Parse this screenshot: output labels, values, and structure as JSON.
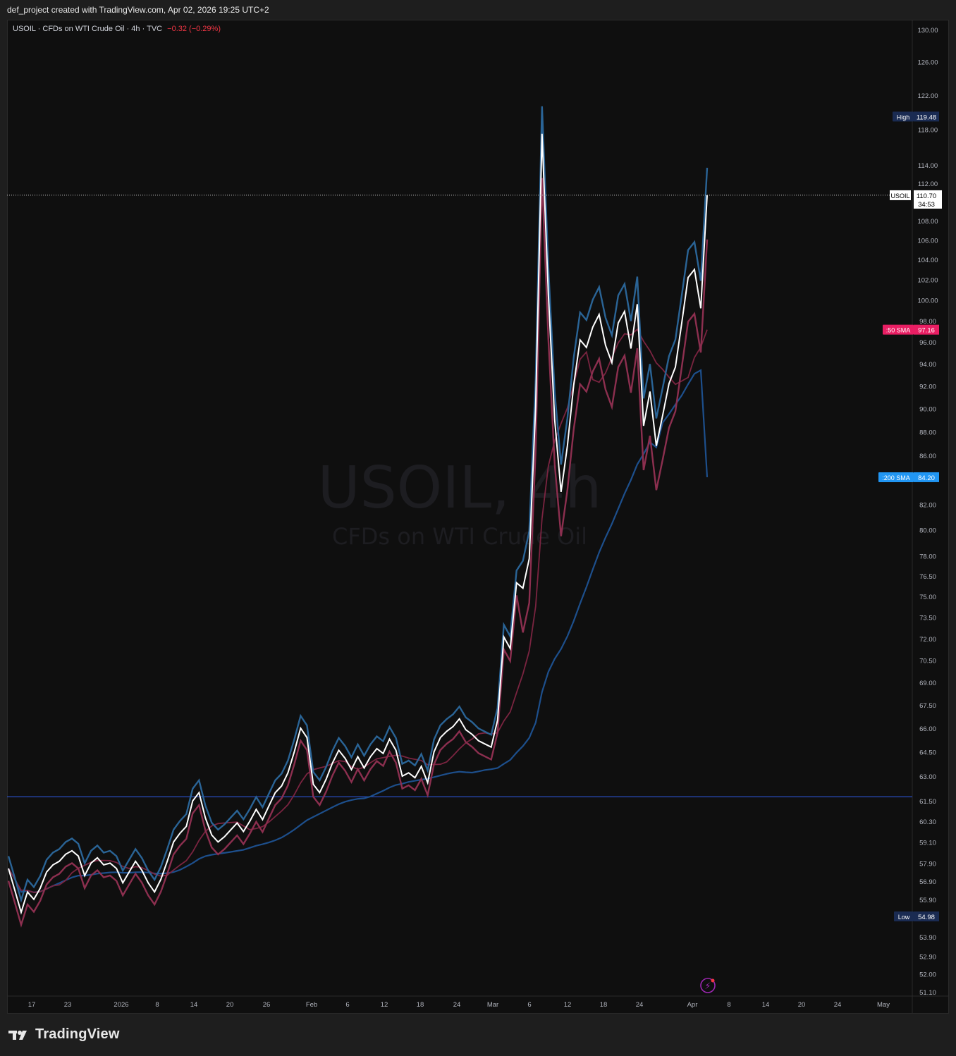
{
  "header": {
    "caption": "def_project created with TradingView.com, Apr 02, 2026 19:25 UTC+2"
  },
  "legend": {
    "symbol_line": "USOIL · CFDs on WTI Crude Oil · 4h · TVC",
    "change": "−0.32 (−0.29%)"
  },
  "watermark": {
    "title": "USOIL, 4h",
    "subtitle": "CFDs on WTI Crude Oil"
  },
  "footer": {
    "logo_text": "TradingView"
  },
  "colors": {
    "background": "#0f0f0f",
    "price_line": "#ffffff",
    "high_band": "#2a6496",
    "low_band": "#8c2f4f",
    "sma50": "#7a2440",
    "sma200": "#1d4f8c",
    "hline": "#2a4cc0",
    "sma50_badge": "#e91e63",
    "sma200_badge": "#2196f3",
    "high_low_badge": "#1a2b52"
  },
  "chart_data": {
    "type": "line",
    "symbol": "USOIL",
    "timeframe": "4h",
    "y_axis": {
      "ticks": [
        "130.00",
        "126.00",
        "122.00",
        "118.00",
        "114.00",
        "112.00",
        "108.00",
        "106.00",
        "104.00",
        "102.00",
        "100.00",
        "98.00",
        "96.00",
        "94.00",
        "92.00",
        "90.00",
        "88.00",
        "86.00",
        "82.00",
        "80.00",
        "78.00",
        "76.50",
        "75.00",
        "73.50",
        "72.00",
        "70.50",
        "69.00",
        "67.50",
        "66.00",
        "64.50",
        "63.00",
        "61.50",
        "60.30",
        "59.10",
        "57.90",
        "56.90",
        "55.90",
        "53.90",
        "52.90",
        "52.00",
        "51.10"
      ],
      "scale": "log",
      "ylim": [
        51.1,
        130
      ]
    },
    "x_axis": {
      "ticks": [
        "17",
        "23",
        "2026",
        "8",
        "14",
        "20",
        "26",
        "Feb",
        "6",
        "12",
        "18",
        "24",
        "Mar",
        "6",
        "12",
        "18",
        "24",
        "Apr",
        "8",
        "14",
        "20",
        "24",
        "May"
      ]
    },
    "series": [
      {
        "name": "Close",
        "points": [
          [
            "Dec 14",
            57.6
          ],
          [
            "Dec 15",
            56.4
          ],
          [
            "Dec 16",
            55.2
          ],
          [
            "Dec 17",
            56.3
          ],
          [
            "Dec 18",
            55.9
          ],
          [
            "Dec 19",
            56.5
          ],
          [
            "Dec 20",
            57.4
          ],
          [
            "Dec 21",
            57.8
          ],
          [
            "Dec 22",
            58.0
          ],
          [
            "Dec 23",
            58.4
          ],
          [
            "Dec 24",
            58.6
          ],
          [
            "Dec 25",
            58.3
          ],
          [
            "Dec 26",
            57.2
          ],
          [
            "Dec 27",
            57.9
          ],
          [
            "Dec 28",
            58.2
          ],
          [
            "Dec 29",
            57.8
          ],
          [
            "Dec 30",
            57.9
          ],
          [
            "Dec 31",
            57.6
          ],
          [
            "Jan 1",
            56.8
          ],
          [
            "Jan 2",
            57.4
          ],
          [
            "Jan 3",
            58.0
          ],
          [
            "Jan 4",
            57.5
          ],
          [
            "Jan 5",
            56.8
          ],
          [
            "Jan 6",
            56.3
          ],
          [
            "Jan 7",
            57.0
          ],
          [
            "Jan 8",
            58.0
          ],
          [
            "Jan 9",
            59.1
          ],
          [
            "Jan 10",
            59.6
          ],
          [
            "Jan 11",
            60.0
          ],
          [
            "Jan 12",
            61.5
          ],
          [
            "Jan 13",
            62.0
          ],
          [
            "Jan 14",
            60.5
          ],
          [
            "Jan 15",
            59.5
          ],
          [
            "Jan 16",
            59.1
          ],
          [
            "Jan 17",
            59.4
          ],
          [
            "Jan 18",
            59.8
          ],
          [
            "Jan 19",
            60.2
          ],
          [
            "Jan 20",
            59.7
          ],
          [
            "Jan 21",
            60.3
          ],
          [
            "Jan 22",
            61.0
          ],
          [
            "Jan 23",
            60.4
          ],
          [
            "Jan 24",
            61.2
          ],
          [
            "Jan 25",
            62.0
          ],
          [
            "Jan 26",
            62.4
          ],
          [
            "Jan 27",
            63.2
          ],
          [
            "Jan 28",
            64.5
          ],
          [
            "Jan 29",
            66.0
          ],
          [
            "Jan 30",
            65.4
          ],
          [
            "Jan 31",
            62.5
          ],
          [
            "Feb 1",
            62.0
          ],
          [
            "Feb 2",
            62.8
          ],
          [
            "Feb 3",
            63.8
          ],
          [
            "Feb 4",
            64.6
          ],
          [
            "Feb 5",
            64.1
          ],
          [
            "Feb 6",
            63.4
          ],
          [
            "Feb 7",
            64.2
          ],
          [
            "Feb 8",
            63.5
          ],
          [
            "Feb 9",
            64.2
          ],
          [
            "Feb 10",
            64.7
          ],
          [
            "Feb 11",
            64.4
          ],
          [
            "Feb 12",
            65.3
          ],
          [
            "Feb 13",
            64.6
          ],
          [
            "Feb 14",
            63.0
          ],
          [
            "Feb 15",
            63.2
          ],
          [
            "Feb 16",
            62.9
          ],
          [
            "Feb 17",
            63.6
          ],
          [
            "Feb 18",
            62.6
          ],
          [
            "Feb 19",
            64.5
          ],
          [
            "Feb 20",
            65.4
          ],
          [
            "Feb 21",
            65.8
          ],
          [
            "Feb 22",
            66.1
          ],
          [
            "Feb 23",
            66.6
          ],
          [
            "Feb 24",
            65.9
          ],
          [
            "Feb 25",
            65.6
          ],
          [
            "Feb 26",
            65.2
          ],
          [
            "Feb 27",
            65.0
          ],
          [
            "Feb 28",
            64.8
          ],
          [
            "Mar 1",
            66.5
          ],
          [
            "Mar 2",
            72.1
          ],
          [
            "Mar 3",
            71.3
          ],
          [
            "Mar 4",
            76.0
          ],
          [
            "Mar 5",
            75.6
          ],
          [
            "Mar 6",
            77.8
          ],
          [
            "Mar 7",
            90.2
          ],
          [
            "Mar 8",
            117.5
          ],
          [
            "Mar 9",
            100.5
          ],
          [
            "Mar 10",
            89.0
          ],
          [
            "Mar 11",
            83.0
          ],
          [
            "Mar 12",
            86.8
          ],
          [
            "Mar 13",
            92.1
          ],
          [
            "Mar 14",
            96.2
          ],
          [
            "Mar 15",
            95.5
          ],
          [
            "Mar 16",
            97.4
          ],
          [
            "Mar 17",
            98.6
          ],
          [
            "Mar 18",
            95.7
          ],
          [
            "Mar 19",
            94.1
          ],
          [
            "Mar 20",
            97.8
          ],
          [
            "Mar 21",
            98.9
          ],
          [
            "Mar 22",
            95.4
          ],
          [
            "Mar 23",
            99.6
          ],
          [
            "Mar 24",
            88.5
          ],
          [
            "Mar 25",
            91.5
          ],
          [
            "Mar 26",
            86.8
          ],
          [
            "Mar 27",
            89.4
          ],
          [
            "Mar 28",
            92.2
          ],
          [
            "Mar 29",
            93.7
          ],
          [
            "Mar 30",
            97.8
          ],
          [
            "Mar 31",
            102.2
          ],
          [
            "Apr 1",
            103.0
          ],
          [
            "Apr 1b",
            99.2
          ],
          [
            "Apr 2",
            110.7
          ]
        ]
      },
      {
        "name": "50 SMA",
        "last": 97.16
      },
      {
        "name": "200 SMA",
        "last": 84.2
      }
    ],
    "horizontal_line": 61.75,
    "last_price": {
      "label": "USOIL",
      "value": "110.70",
      "countdown": "34:53"
    },
    "high": {
      "label": "High",
      "value": "119.48"
    },
    "low": {
      "label": "Low",
      "value": "54.98"
    },
    "sma50": {
      "label": ":50 SMA",
      "value": "97.16"
    },
    "sma200": {
      "label": ":200 SMA",
      "value": "84.20"
    },
    "grid": false,
    "legend": "top-left"
  }
}
